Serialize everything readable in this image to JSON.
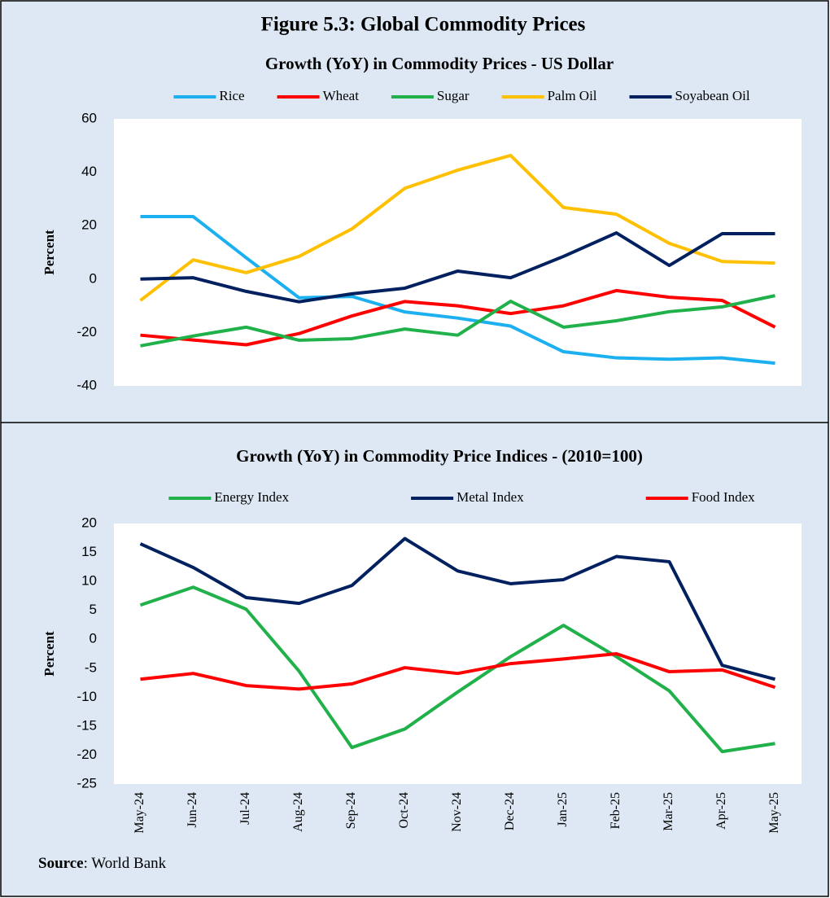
{
  "title": "Figure 5.3: Global Commodity Prices",
  "source": {
    "label": "Source",
    "text": ": World Bank"
  },
  "chart_data": [
    {
      "type": "line",
      "title": "Growth (YoY) in Commodity Prices - US Dollar",
      "ylabel": "Percent",
      "categories": [
        null,
        null,
        null,
        null,
        null,
        null,
        null,
        null,
        null,
        null,
        null,
        null,
        null
      ],
      "series": [
        {
          "name": "Rice",
          "color": "#1cb0f0",
          "values": [
            23.4,
            23.4,
            8,
            -7,
            -6.5,
            -12.3,
            -14.6,
            -17.6,
            -27.2,
            -29.5,
            -30,
            -29.5,
            -31.5
          ]
        },
        {
          "name": "Wheat",
          "color": "#ff0000",
          "values": [
            -21,
            -22.8,
            -24.6,
            -20.4,
            -13.8,
            -8.4,
            -10,
            -12.9,
            -10,
            -4.3,
            -6.8,
            -8,
            -18
          ]
        },
        {
          "name": "Sugar",
          "color": "#21b14b",
          "values": [
            -25,
            -21.3,
            -18,
            -22.9,
            -22.3,
            -18.7,
            -21,
            -8.3,
            -18,
            -15.6,
            -12.2,
            -10.4,
            -6.2
          ]
        },
        {
          "name": "Palm Oil",
          "color": "#ffc000",
          "values": [
            -8,
            7.2,
            2.4,
            8.5,
            18.8,
            34,
            40.8,
            46.3,
            26.8,
            24.3,
            13.4,
            6.6,
            6
          ]
        },
        {
          "name": "Soyabean Oil",
          "color": "#002060",
          "values": [
            0,
            0.5,
            -4.6,
            -8.5,
            -5.5,
            -3.4,
            3,
            0.5,
            8.5,
            17.3,
            5.1,
            17,
            17
          ]
        }
      ],
      "ylim": [
        -40,
        60
      ],
      "yticks": [
        -40,
        -20,
        0,
        20,
        40,
        60
      ],
      "grid": false,
      "legend": "top"
    },
    {
      "type": "line",
      "title": "Growth (YoY) in Commodity Price Indices -  (2010=100)",
      "ylabel": "Percent",
      "categories": [
        "May-24",
        "Jun-24",
        "Jul-24",
        "Aug-24",
        "Sep-24",
        "Oct-24",
        "Nov-24",
        "Dec-24",
        "Jan-25",
        "Feb-25",
        "Mar-25",
        "Apr-25",
        "May-25"
      ],
      "series": [
        {
          "name": "Energy Index",
          "color": "#21b14b",
          "values": [
            5.9,
            9,
            5.2,
            -5.5,
            -18.7,
            -15.5,
            -9.1,
            -3,
            2.4,
            -3,
            -8.9,
            -19.4,
            -18
          ]
        },
        {
          "name": "Metal Index",
          "color": "#002060",
          "values": [
            16.5,
            12.4,
            7.2,
            6.2,
            9.3,
            17.4,
            11.8,
            9.6,
            10.3,
            14.3,
            13.4,
            -4.5,
            -6.9
          ]
        },
        {
          "name": "Food Index",
          "color": "#ff0000",
          "values": [
            -6.9,
            -5.9,
            -8,
            -8.6,
            -7.7,
            -4.9,
            -5.9,
            -4.2,
            -3.4,
            -2.5,
            -5.6,
            -5.3,
            -8.3
          ]
        }
      ],
      "ylim": [
        -25,
        20
      ],
      "yticks": [
        -25,
        -20,
        -15,
        -10,
        -5,
        0,
        5,
        10,
        15,
        20
      ],
      "grid": false,
      "legend": "top"
    }
  ]
}
